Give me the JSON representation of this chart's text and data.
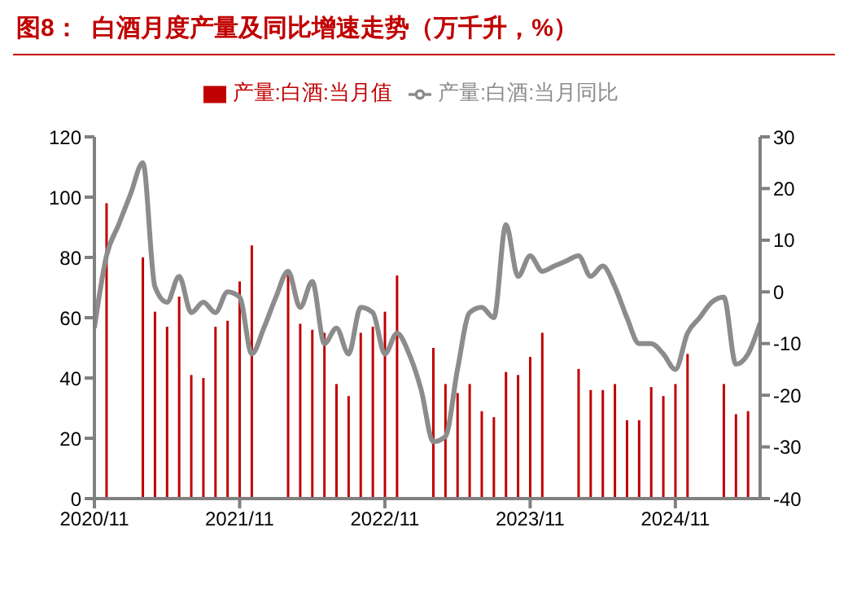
{
  "chart_data": {
    "type": "bar",
    "title": "图8：  白酒月度产量及同比增速走势（万千升，%）",
    "categories": [
      "2020/11",
      null,
      null,
      null,
      null,
      null,
      null,
      null,
      null,
      null,
      null,
      null,
      "2021/11",
      null,
      null,
      null,
      null,
      null,
      null,
      null,
      null,
      null,
      null,
      null,
      "2022/11",
      null,
      null,
      null,
      null,
      null,
      null,
      null,
      null,
      null,
      null,
      null,
      "2023/11",
      null,
      null,
      null,
      null,
      null,
      null,
      null,
      null,
      null,
      null,
      null,
      "2024/11",
      null,
      null,
      null,
      null,
      null,
      null,
      null
    ],
    "series": [
      {
        "name": "产量:白酒:当月值",
        "color": "#c00000",
        "values": [
          null,
          98,
          null,
          null,
          80,
          62,
          57,
          67,
          41,
          40,
          57,
          59,
          72,
          84,
          null,
          null,
          75,
          58,
          56,
          55,
          38,
          34,
          55,
          57,
          62,
          74,
          null,
          null,
          50,
          38,
          35,
          38,
          29,
          27,
          42,
          41,
          47,
          55,
          null,
          null,
          43,
          36,
          36,
          38,
          26,
          26,
          37,
          34,
          38,
          48,
          null,
          null,
          38,
          28,
          29,
          null
        ]
      },
      {
        "name": "产量:白酒:当月同比",
        "type": "line",
        "axis": "y2",
        "color": "#8c8c8c",
        "values": [
          -7,
          7,
          13,
          19,
          25,
          1,
          -2,
          3,
          -4,
          -2,
          -4,
          0,
          -1,
          -12,
          -7,
          -1,
          4,
          -3,
          2,
          -10,
          -7,
          -12,
          -3,
          -4,
          -12,
          -8,
          -12,
          -19,
          -29,
          -28,
          -15,
          -4,
          -3,
          -5,
          13,
          3,
          7,
          4,
          5,
          6,
          7,
          3,
          5,
          1,
          -5,
          -10,
          -10,
          -12,
          -15,
          -8,
          -5,
          -2,
          -1,
          -14,
          -12,
          -6
        ]
      }
    ],
    "ylim": [
      0,
      120
    ],
    "yticks": [
      0,
      20,
      40,
      60,
      80,
      100,
      120
    ],
    "y2lim": [
      -40,
      30
    ],
    "y2ticks": [
      -40,
      -30,
      -20,
      -10,
      0,
      10,
      20,
      30
    ],
    "legend": "top"
  }
}
